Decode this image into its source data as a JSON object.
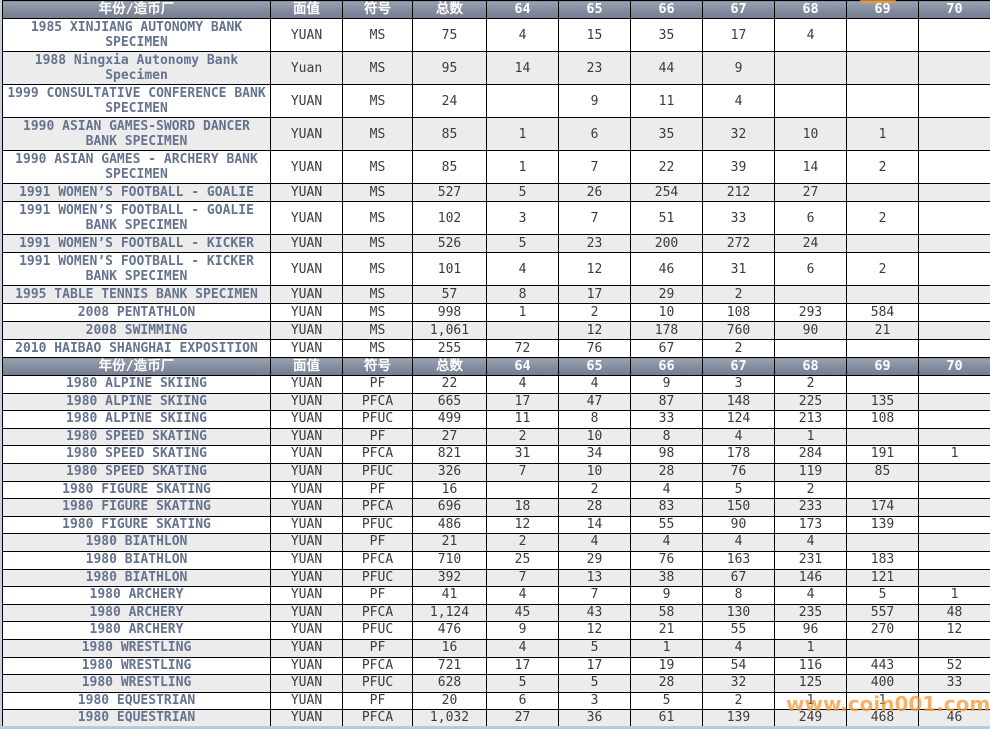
{
  "colors": {
    "header_bg_top": "#9aa3b2",
    "header_bg_bottom": "#747e90",
    "alt_row_bg": "#ececec",
    "name_text": "#65738f",
    "value_text": "#3b3b3b",
    "watermark_orange": "#f49a3d"
  },
  "watermark": {
    "text": "www.coin001.com"
  },
  "table": {
    "headers": {
      "year_mint": "年份/造币厂",
      "denomination": "面值",
      "symbol": "符号",
      "total": "总数",
      "grades": [
        "64",
        "65",
        "66",
        "67",
        "68",
        "69",
        "70"
      ]
    },
    "sections": [
      {
        "name": "ms-section",
        "rows": [
          {
            "year_mint": "1985 XINJIANG AUTONOMY BANK SPECIMEN",
            "denomination": "YUAN",
            "symbol": "MS",
            "total": "75",
            "grades": [
              "4",
              "15",
              "35",
              "17",
              "4",
              "",
              ""
            ]
          },
          {
            "year_mint": "1988 Ningxia Autonomy Bank Specimen",
            "denomination": "Yuan",
            "symbol": "MS",
            "total": "95",
            "grades": [
              "14",
              "23",
              "44",
              "9",
              "",
              "",
              ""
            ]
          },
          {
            "year_mint": "1999 CONSULTATIVE CONFERENCE BANK SPECIMEN",
            "denomination": "YUAN",
            "symbol": "MS",
            "total": "24",
            "grades": [
              "",
              "9",
              "11",
              "4",
              "",
              "",
              ""
            ]
          },
          {
            "year_mint": "1990 ASIAN GAMES-SWORD DANCER BANK SPECIMEN",
            "denomination": "YUAN",
            "symbol": "MS",
            "total": "85",
            "grades": [
              "1",
              "6",
              "35",
              "32",
              "10",
              "1",
              ""
            ]
          },
          {
            "year_mint": "1990 ASIAN GAMES - ARCHERY BANK SPECIMEN",
            "denomination": "YUAN",
            "symbol": "MS",
            "total": "85",
            "grades": [
              "1",
              "7",
              "22",
              "39",
              "14",
              "2",
              ""
            ]
          },
          {
            "year_mint": "1991 WOMEN’S FOOTBALL - GOALIE",
            "denomination": "YUAN",
            "symbol": "MS",
            "total": "527",
            "grades": [
              "5",
              "26",
              "254",
              "212",
              "27",
              "",
              ""
            ]
          },
          {
            "year_mint": "1991 WOMEN’S FOOTBALL - GOALIE BANK SPECIMEN",
            "denomination": "YUAN",
            "symbol": "MS",
            "total": "102",
            "grades": [
              "3",
              "7",
              "51",
              "33",
              "6",
              "2",
              ""
            ]
          },
          {
            "year_mint": "1991 WOMEN’S FOOTBALL - KICKER",
            "denomination": "YUAN",
            "symbol": "MS",
            "total": "526",
            "grades": [
              "5",
              "23",
              "200",
              "272",
              "24",
              "",
              ""
            ]
          },
          {
            "year_mint": "1991 WOMEN’S FOOTBALL - KICKER BANK SPECIMEN",
            "denomination": "YUAN",
            "symbol": "MS",
            "total": "101",
            "grades": [
              "4",
              "12",
              "46",
              "31",
              "6",
              "2",
              ""
            ]
          },
          {
            "year_mint": "1995 TABLE TENNIS BANK SPECIMEN",
            "denomination": "YUAN",
            "symbol": "MS",
            "total": "57",
            "grades": [
              "8",
              "17",
              "29",
              "2",
              "",
              "",
              ""
            ]
          },
          {
            "year_mint": "2008 PENTATHLON",
            "denomination": "YUAN",
            "symbol": "MS",
            "total": "998",
            "grades": [
              "1",
              "2",
              "10",
              "108",
              "293",
              "584",
              ""
            ]
          },
          {
            "year_mint": "2008 SWIMMING",
            "denomination": "YUAN",
            "symbol": "MS",
            "total": "1,061",
            "grades": [
              "",
              "12",
              "178",
              "760",
              "90",
              "21",
              ""
            ]
          },
          {
            "year_mint": "2010 HAIBAO SHANGHAI EXPOSITION",
            "denomination": "YUAN",
            "symbol": "MS",
            "total": "255",
            "grades": [
              "72",
              "76",
              "67",
              "2",
              "",
              "",
              ""
            ]
          }
        ]
      },
      {
        "name": "pf-section",
        "rows": [
          {
            "year_mint": "1980 ALPINE SKIING",
            "denomination": "YUAN",
            "symbol": "PF",
            "total": "22",
            "grades": [
              "4",
              "4",
              "9",
              "3",
              "2",
              "",
              ""
            ]
          },
          {
            "year_mint": "1980 ALPINE SKIING",
            "denomination": "YUAN",
            "symbol": "PFCA",
            "total": "665",
            "grades": [
              "17",
              "47",
              "87",
              "148",
              "225",
              "135",
              ""
            ]
          },
          {
            "year_mint": "1980 ALPINE SKIING",
            "denomination": "YUAN",
            "symbol": "PFUC",
            "total": "499",
            "grades": [
              "11",
              "8",
              "33",
              "124",
              "213",
              "108",
              ""
            ]
          },
          {
            "year_mint": "1980 SPEED SKATING",
            "denomination": "YUAN",
            "symbol": "PF",
            "total": "27",
            "grades": [
              "2",
              "10",
              "8",
              "4",
              "1",
              "",
              ""
            ]
          },
          {
            "year_mint": "1980 SPEED SKATING",
            "denomination": "YUAN",
            "symbol": "PFCA",
            "total": "821",
            "grades": [
              "31",
              "34",
              "98",
              "178",
              "284",
              "191",
              "1"
            ]
          },
          {
            "year_mint": "1980 SPEED SKATING",
            "denomination": "YUAN",
            "symbol": "PFUC",
            "total": "326",
            "grades": [
              "7",
              "10",
              "28",
              "76",
              "119",
              "85",
              ""
            ]
          },
          {
            "year_mint": "1980 FIGURE SKATING",
            "denomination": "YUAN",
            "symbol": "PF",
            "total": "16",
            "grades": [
              "",
              "2",
              "4",
              "5",
              "2",
              "",
              ""
            ]
          },
          {
            "year_mint": "1980 FIGURE SKATING",
            "denomination": "YUAN",
            "symbol": "PFCA",
            "total": "696",
            "grades": [
              "18",
              "28",
              "83",
              "150",
              "233",
              "174",
              ""
            ]
          },
          {
            "year_mint": "1980 FIGURE SKATING",
            "denomination": "YUAN",
            "symbol": "PFUC",
            "total": "486",
            "grades": [
              "12",
              "14",
              "55",
              "90",
              "173",
              "139",
              ""
            ]
          },
          {
            "year_mint": "1980 BIATHLON",
            "denomination": "YUAN",
            "symbol": "PF",
            "total": "21",
            "grades": [
              "2",
              "4",
              "4",
              "4",
              "4",
              "",
              ""
            ]
          },
          {
            "year_mint": "1980 BIATHLON",
            "denomination": "YUAN",
            "symbol": "PFCA",
            "total": "710",
            "grades": [
              "25",
              "29",
              "76",
              "163",
              "231",
              "183",
              ""
            ]
          },
          {
            "year_mint": "1980 BIATHLON",
            "denomination": "YUAN",
            "symbol": "PFUC",
            "total": "392",
            "grades": [
              "7",
              "13",
              "38",
              "67",
              "146",
              "121",
              ""
            ]
          },
          {
            "year_mint": "1980 ARCHERY",
            "denomination": "YUAN",
            "symbol": "PF",
            "total": "41",
            "grades": [
              "4",
              "7",
              "9",
              "8",
              "4",
              "5",
              "1"
            ]
          },
          {
            "year_mint": "1980 ARCHERY",
            "denomination": "YUAN",
            "symbol": "PFCA",
            "total": "1,124",
            "grades": [
              "45",
              "43",
              "58",
              "130",
              "235",
              "557",
              "48"
            ]
          },
          {
            "year_mint": "1980 ARCHERY",
            "denomination": "YUAN",
            "symbol": "PFUC",
            "total": "476",
            "grades": [
              "9",
              "12",
              "21",
              "55",
              "96",
              "270",
              "12"
            ]
          },
          {
            "year_mint": "1980 WRESTLING",
            "denomination": "YUAN",
            "symbol": "PF",
            "total": "16",
            "grades": [
              "4",
              "5",
              "1",
              "4",
              "1",
              "",
              ""
            ]
          },
          {
            "year_mint": "1980 WRESTLING",
            "denomination": "YUAN",
            "symbol": "PFCA",
            "total": "721",
            "grades": [
              "17",
              "17",
              "19",
              "54",
              "116",
              "443",
              "52"
            ]
          },
          {
            "year_mint": "1980 WRESTLING",
            "denomination": "YUAN",
            "symbol": "PFUC",
            "total": "628",
            "grades": [
              "5",
              "5",
              "28",
              "32",
              "125",
              "400",
              "33"
            ]
          },
          {
            "year_mint": "1980 EQUESTRIAN",
            "denomination": "YUAN",
            "symbol": "PF",
            "total": "20",
            "grades": [
              "6",
              "3",
              "5",
              "2",
              "1",
              "1",
              ""
            ]
          },
          {
            "year_mint": "1980 EQUESTRIAN",
            "denomination": "YUAN",
            "symbol": "PFCA",
            "total": "1,032",
            "grades": [
              "27",
              "36",
              "61",
              "139",
              "249",
              "468",
              "46"
            ]
          }
        ]
      }
    ]
  }
}
